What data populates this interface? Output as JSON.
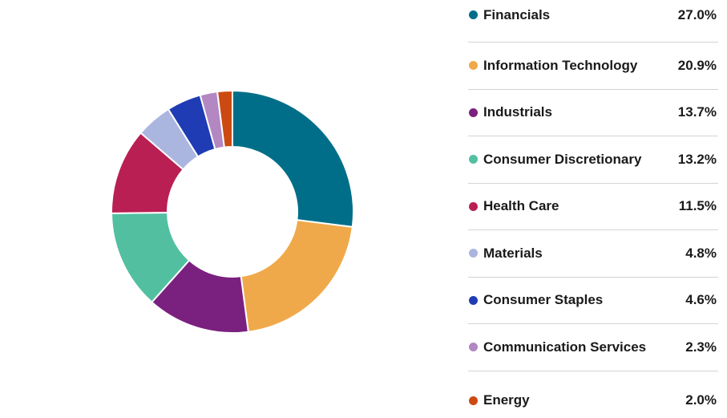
{
  "chart_data": {
    "type": "pie",
    "variant": "donut",
    "legend_position": "right",
    "categories": [
      "Financials",
      "Information Technology",
      "Industrials",
      "Consumer Discretionary",
      "Health Care",
      "Materials",
      "Consumer Staples",
      "Communication Services",
      "Energy"
    ],
    "values": [
      27.0,
      20.9,
      13.7,
      13.2,
      11.5,
      4.8,
      4.6,
      2.3,
      2.0
    ],
    "value_labels": [
      "27.0%",
      "20.9%",
      "13.7%",
      "13.2%",
      "11.5%",
      "4.8%",
      "4.6%",
      "2.3%",
      "2.0%"
    ],
    "colors": [
      "#006e88",
      "#f0a94a",
      "#7a2180",
      "#52bfa1",
      "#b91f53",
      "#aab6e0",
      "#1f3cb5",
      "#b287c2",
      "#cc4a12"
    ]
  }
}
